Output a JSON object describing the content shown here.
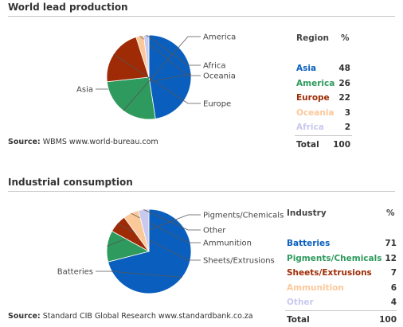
{
  "sections": [
    {
      "title": "World lead production",
      "source_label": "Source:",
      "source_text": "WBMS www.world-bureau.com",
      "table_header": [
        "Region",
        "%"
      ],
      "total_label": "Total",
      "total_value": 100
    },
    {
      "title": "Industrial consumption",
      "source_label": "Source:",
      "source_text": "Standard CIB Global Research www.standardbank.co.za",
      "table_header": [
        "Industry",
        "%"
      ],
      "total_label": "Total",
      "total_value": 100
    }
  ],
  "chart_data": [
    {
      "type": "pie",
      "title": "World lead production",
      "categories": [
        "Asia",
        "America",
        "Europe",
        "Oceania",
        "Africa"
      ],
      "values": [
        48,
        26,
        22,
        3,
        2
      ],
      "colors": [
        "#0a5fbe",
        "#2e9a5d",
        "#9e2b05",
        "#fbc89a",
        "#c9c9ee"
      ],
      "total": 100
    },
    {
      "type": "pie",
      "title": "Industrial consumption",
      "categories": [
        "Batteries",
        "Pigments/Chemicals",
        "Sheets/Extrusions",
        "Ammunition",
        "Other"
      ],
      "values": [
        71,
        12,
        7,
        6,
        4
      ],
      "colors": [
        "#0a5fbe",
        "#2e9a5d",
        "#9e2b05",
        "#fbc89a",
        "#c9c9ee"
      ],
      "total": 100
    }
  ]
}
